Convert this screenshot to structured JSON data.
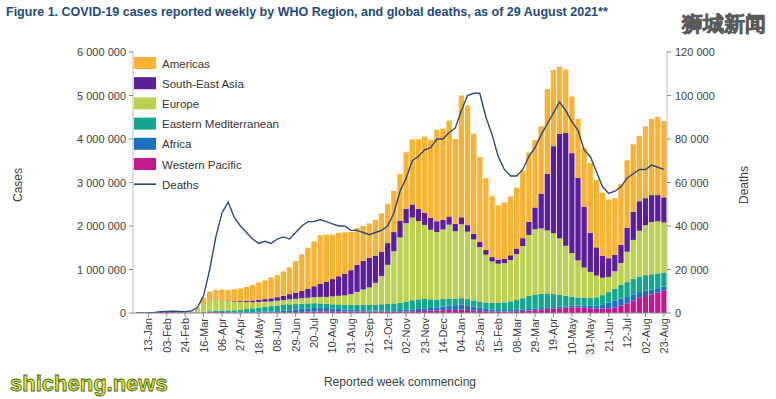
{
  "chart_data": {
    "type": "bar",
    "stacked": true,
    "grid": false,
    "legend": "top-left",
    "title": "Figure 1. COVID-19 cases reported weekly by WHO Region, and global deaths, as of 29 August 2021**",
    "xlabel": "Reported week commencing",
    "ylabel": "Cases",
    "y2label": "Deaths",
    "annotations": [
      "狮城新闻",
      "shicheng.news"
    ],
    "categories": [
      null,
      null,
      "13-Jan",
      null,
      null,
      "03-Feb",
      null,
      null,
      "24-Feb",
      null,
      null,
      "16-Mar",
      null,
      null,
      "06-Apr",
      null,
      null,
      "27-Apr",
      null,
      null,
      "18-May",
      null,
      null,
      "08-Jun",
      null,
      null,
      "29-Jun",
      null,
      null,
      "20-Jul",
      null,
      null,
      "10-Aug",
      null,
      null,
      "31-Aug",
      null,
      null,
      "21-Sep",
      null,
      null,
      "12-Oct",
      null,
      null,
      "02-Nov",
      null,
      null,
      "23-Nov",
      null,
      null,
      "14-Dec",
      null,
      null,
      "04-Jan",
      null,
      null,
      "25-Jan",
      null,
      null,
      "15-Feb",
      null,
      null,
      "08-Mar",
      null,
      null,
      "29-Mar",
      null,
      null,
      "19-Apr",
      null,
      null,
      "10-May",
      null,
      null,
      "31-May",
      null,
      null,
      "21-Jun",
      null,
      null,
      "12-Jul",
      null,
      null,
      "02-Aug",
      null,
      null,
      "23-Aug"
    ],
    "ylim": [
      0,
      6000000
    ],
    "yticks": [
      0,
      {
        "value": 1000000,
        "label": "1 000 000"
      },
      {
        "value": 2000000,
        "label": "2 000 000"
      },
      {
        "value": 3000000,
        "label": "3 000 000"
      },
      {
        "value": 4000000,
        "label": "4 000 000"
      },
      {
        "value": 5000000,
        "label": "5 000 000"
      },
      {
        "value": 6000000,
        "label": "6 000 000"
      }
    ],
    "y2lim": [
      0,
      120000
    ],
    "y2ticks": [
      0,
      {
        "value": 20000,
        "label": "20 000"
      },
      {
        "value": 40000,
        "label": "40 000"
      },
      {
        "value": 60000,
        "label": "60 000"
      },
      {
        "value": 80000,
        "label": "80 000"
      },
      {
        "value": 100000,
        "label": "100 000"
      },
      {
        "value": 120000,
        "label": "120 000"
      }
    ],
    "series": [
      {
        "name": "Americas",
        "type": "bar",
        "color": "#f9b233",
        "values": [
          0,
          0,
          0,
          0,
          0,
          0,
          0,
          0,
          5000,
          10000,
          30000,
          120000,
          200000,
          220000,
          230000,
          240000,
          270000,
          290000,
          320000,
          360000,
          400000,
          430000,
          480000,
          510000,
          560000,
          620000,
          730000,
          840000,
          940000,
          1030000,
          1120000,
          1080000,
          1020000,
          1000000,
          950000,
          880000,
          850000,
          800000,
          790000,
          830000,
          880000,
          900000,
          950000,
          1080000,
          1300000,
          1500000,
          1600000,
          1750000,
          1800000,
          2100000,
          2100000,
          2200000,
          1950000,
          2800000,
          2750000,
          2300000,
          1950000,
          1650000,
          1400000,
          1250000,
          1300000,
          1350000,
          1400000,
          1550000,
          1600000,
          1550000,
          1550000,
          1950000,
          1750000,
          1550000,
          1450000,
          1300000,
          1350000,
          1350000,
          1600000,
          1550000,
          1450000,
          1350000,
          1300000,
          1400000,
          1550000,
          1550000,
          1500000,
          1650000,
          1750000,
          1800000,
          1750000
        ]
      },
      {
        "name": "South-East Asia",
        "type": "bar",
        "color": "#5b1f98",
        "values": [
          0,
          0,
          0,
          0,
          0,
          0,
          0,
          0,
          0,
          0,
          0,
          1000,
          2000,
          5000,
          8000,
          10000,
          15000,
          20000,
          30000,
          40000,
          50000,
          60000,
          70000,
          80000,
          100000,
          120000,
          140000,
          170000,
          210000,
          250000,
          300000,
          350000,
          400000,
          450000,
          500000,
          550000,
          620000,
          660000,
          680000,
          620000,
          560000,
          500000,
          440000,
          380000,
          330000,
          300000,
          280000,
          280000,
          270000,
          250000,
          220000,
          190000,
          170000,
          160000,
          150000,
          130000,
          120000,
          110000,
          100000,
          95000,
          100000,
          110000,
          130000,
          180000,
          300000,
          500000,
          800000,
          1300000,
          2000000,
          2400000,
          2600000,
          2300000,
          1900000,
          1400000,
          900000,
          650000,
          500000,
          430000,
          380000,
          420000,
          550000,
          650000,
          680000,
          620000,
          620000,
          600000,
          580000
        ]
      },
      {
        "name": "Europe",
        "type": "bar",
        "color": "#bcd152",
        "values": [
          0,
          0,
          0,
          0,
          0,
          0,
          0,
          0,
          5000,
          20000,
          80000,
          200000,
          250000,
          250000,
          240000,
          220000,
          200000,
          180000,
          160000,
          140000,
          130000,
          120000,
          110000,
          110000,
          110000,
          115000,
          120000,
          125000,
          130000,
          140000,
          150000,
          160000,
          180000,
          200000,
          220000,
          250000,
          300000,
          350000,
          400000,
          500000,
          650000,
          900000,
          1200000,
          1500000,
          1800000,
          1900000,
          1800000,
          1700000,
          1600000,
          1550000,
          1600000,
          1700000,
          1550000,
          1700000,
          1550000,
          1400000,
          1250000,
          1100000,
          950000,
          900000,
          900000,
          950000,
          1050000,
          1200000,
          1400000,
          1500000,
          1500000,
          1450000,
          1400000,
          1300000,
          1150000,
          1000000,
          850000,
          700000,
          600000,
          500000,
          400000,
          350000,
          400000,
          500000,
          700000,
          900000,
          1050000,
          1150000,
          1200000,
          1200000,
          1150000
        ]
      },
      {
        "name": "Eastern Mediterranean",
        "type": "bar",
        "color": "#16a58d",
        "values": [
          0,
          0,
          0,
          0,
          0,
          0,
          0,
          0,
          0,
          0,
          5000,
          15000,
          25000,
          30000,
          35000,
          40000,
          45000,
          55000,
          70000,
          85000,
          100000,
          110000,
          120000,
          130000,
          135000,
          135000,
          130000,
          125000,
          115000,
          110000,
          100000,
          95000,
          95000,
          100000,
          105000,
          110000,
          115000,
          125000,
          130000,
          135000,
          140000,
          145000,
          155000,
          170000,
          190000,
          210000,
          220000,
          220000,
          200000,
          180000,
          170000,
          160000,
          150000,
          150000,
          145000,
          140000,
          140000,
          145000,
          155000,
          165000,
          180000,
          200000,
          230000,
          260000,
          300000,
          320000,
          330000,
          320000,
          300000,
          270000,
          240000,
          210000,
          190000,
          180000,
          180000,
          190000,
          210000,
          240000,
          280000,
          320000,
          340000,
          350000,
          360000,
          360000,
          350000,
          340000,
          320000
        ]
      },
      {
        "name": "Africa",
        "type": "bar",
        "color": "#1f6fc1",
        "values": [
          0,
          0,
          0,
          0,
          0,
          0,
          0,
          0,
          0,
          0,
          0,
          1000,
          2000,
          3000,
          4000,
          5000,
          6000,
          8000,
          10000,
          12000,
          15000,
          18000,
          22000,
          28000,
          35000,
          45000,
          55000,
          65000,
          75000,
          80000,
          80000,
          75000,
          65000,
          55000,
          45000,
          40000,
          35000,
          30000,
          28000,
          28000,
          30000,
          32000,
          35000,
          38000,
          40000,
          45000,
          50000,
          55000,
          60000,
          70000,
          85000,
          100000,
          110000,
          115000,
          105000,
          90000,
          75000,
          55000,
          45000,
          38000,
          35000,
          33000,
          33000,
          35000,
          38000,
          40000,
          40000,
          38000,
          35000,
          35000,
          35000,
          35000,
          38000,
          45000,
          55000,
          70000,
          100000,
          130000,
          150000,
          160000,
          150000,
          140000,
          130000,
          120000,
          110000,
          100000,
          90000
        ]
      },
      {
        "name": "Western Pacific",
        "type": "bar",
        "color": "#c3198c",
        "values": [
          0,
          1000,
          5000,
          15000,
          20000,
          25000,
          20000,
          15000,
          10000,
          8000,
          10000,
          12000,
          15000,
          18000,
          20000,
          15000,
          12000,
          10000,
          10000,
          10000,
          10000,
          12000,
          15000,
          15000,
          15000,
          18000,
          20000,
          25000,
          30000,
          35000,
          40000,
          40000,
          40000,
          40000,
          35000,
          35000,
          35000,
          35000,
          30000,
          30000,
          30000,
          30000,
          30000,
          30000,
          35000,
          40000,
          45000,
          50000,
          55000,
          60000,
          65000,
          70000,
          70000,
          75000,
          70000,
          60000,
          50000,
          40000,
          35000,
          30000,
          30000,
          35000,
          40000,
          45000,
          55000,
          65000,
          75000,
          90000,
          100000,
          110000,
          120000,
          130000,
          130000,
          120000,
          110000,
          100000,
          100000,
          110000,
          130000,
          170000,
          220000,
          290000,
          350000,
          390000,
          430000,
          470000,
          520000
        ]
      },
      {
        "name": "Deaths",
        "type": "line",
        "axis": "y2",
        "color": "#2a4a7c",
        "values": [
          0,
          0,
          100,
          300,
          600,
          700,
          800,
          700,
          600,
          1000,
          2500,
          8000,
          20000,
          35000,
          46000,
          51000,
          44000,
          40000,
          37000,
          34000,
          32000,
          33000,
          32000,
          34000,
          35000,
          34000,
          37000,
          40000,
          42000,
          42000,
          43000,
          42000,
          41000,
          40000,
          40000,
          38000,
          38000,
          37000,
          36000,
          37000,
          38000,
          40000,
          46000,
          56000,
          62000,
          70000,
          72000,
          75000,
          76000,
          80000,
          80000,
          83000,
          85000,
          93000,
          100000,
          101000,
          101000,
          90000,
          82000,
          72000,
          66000,
          63000,
          63000,
          66000,
          72000,
          76000,
          82000,
          87000,
          92000,
          97000,
          93000,
          88000,
          84000,
          75000,
          72000,
          65000,
          58000,
          55000,
          56000,
          58000,
          62000,
          64000,
          66000,
          66000,
          68000,
          67000,
          66000
        ]
      }
    ]
  }
}
